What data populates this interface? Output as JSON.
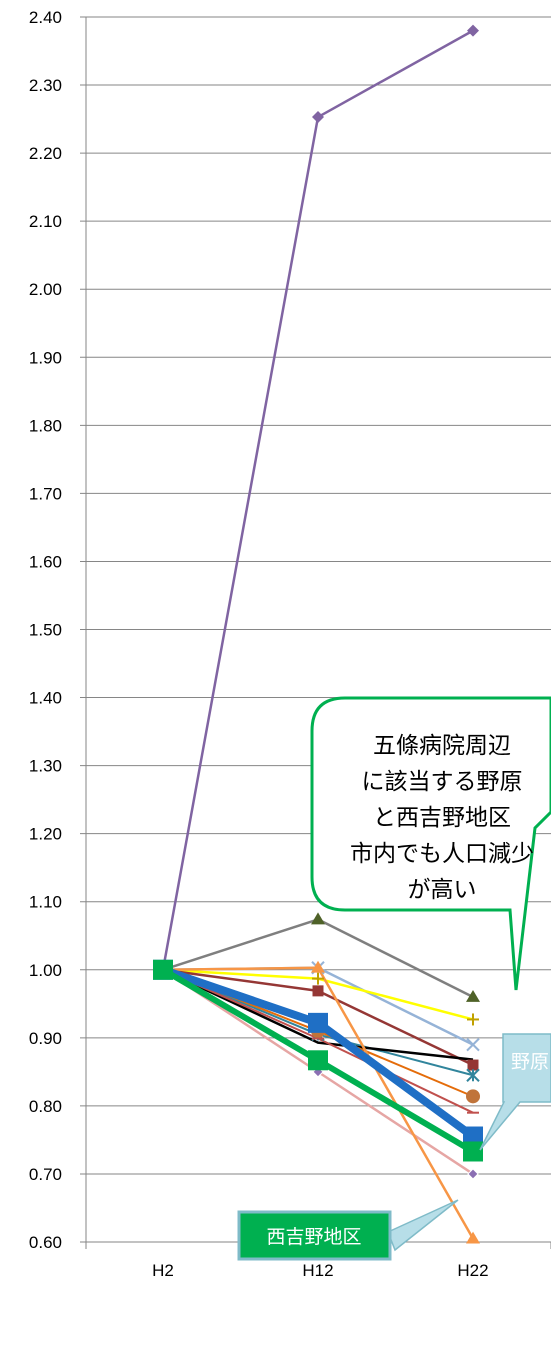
{
  "chart_data": {
    "type": "line",
    "categories": [
      "H2",
      "H12",
      "H22"
    ],
    "ylim": [
      0.6,
      2.4
    ],
    "yticks": [
      "0.60",
      "0.70",
      "0.80",
      "0.90",
      "1.00",
      "1.10",
      "1.20",
      "1.30",
      "1.40",
      "1.50",
      "1.60",
      "1.70",
      "1.80",
      "1.90",
      "2.00",
      "2.10",
      "2.20",
      "2.30",
      "2.40"
    ],
    "grid": true,
    "series": [
      {
        "values": [
          1.0,
          2.253,
          2.38
        ],
        "color": "#8064A2",
        "marker": "diamond",
        "width": 2.5
      },
      {
        "values": [
          1.0,
          1.074,
          0.96
        ],
        "color": "#7F7F7F",
        "marker": "triangle",
        "markerColor": "#4F6228",
        "width": 2.5
      },
      {
        "values": [
          1.0,
          1.003,
          0.89
        ],
        "color": "#95B3D7",
        "marker": "x",
        "width": 2.5
      },
      {
        "values": [
          1.0,
          0.987,
          0.927
        ],
        "color": "#FFFF00",
        "marker": "plus",
        "markerColor": "#C0A000",
        "width": 2.5
      },
      {
        "values": [
          1.0,
          0.969,
          0.86
        ],
        "color": "#953735",
        "marker": "square-sm",
        "width": 2.5
      },
      {
        "values": [
          1.0,
          0.905,
          0.845
        ],
        "color": "#31859C",
        "marker": "star",
        "width": 2
      },
      {
        "values": [
          1.0,
          0.893,
          0.868
        ],
        "color": "#000000",
        "marker": "none",
        "width": 2.5
      },
      {
        "values": [
          1.0,
          0.91,
          0.814
        ],
        "color": "#E46C0A",
        "marker": "circle",
        "markerColor": "#C0743A",
        "width": 2
      },
      {
        "values": [
          1.0,
          0.899,
          0.79
        ],
        "color": "#C0504D",
        "marker": "dash",
        "width": 2
      },
      {
        "values": [
          1.0,
          0.85,
          0.7
        ],
        "color": "#E6A6A4",
        "marker": "diamond-sm",
        "markerColor": "#8B6FB3",
        "width": 2.5
      },
      {
        "values": [
          1.0,
          1.003,
          0.605
        ],
        "color": "#F79646",
        "marker": "triangle",
        "markerColor": "#F79646",
        "width": 2.5
      },
      {
        "values": [
          1.0,
          0.922,
          0.755
        ],
        "color": "#1F6FC5",
        "marker": "square",
        "width": 8
      },
      {
        "values": [
          1.0,
          0.867,
          0.733
        ],
        "color": "#00B050",
        "marker": "square",
        "markerColor": "#00B050",
        "width": 6
      }
    ]
  },
  "callout": {
    "lines": [
      "五條病院周辺",
      "に該当する野原",
      "と西吉野地区",
      "市内でも人口減少",
      "が高い"
    ]
  },
  "labels": {
    "nohara": "野原",
    "nishiyoshino": "西吉野地区"
  }
}
